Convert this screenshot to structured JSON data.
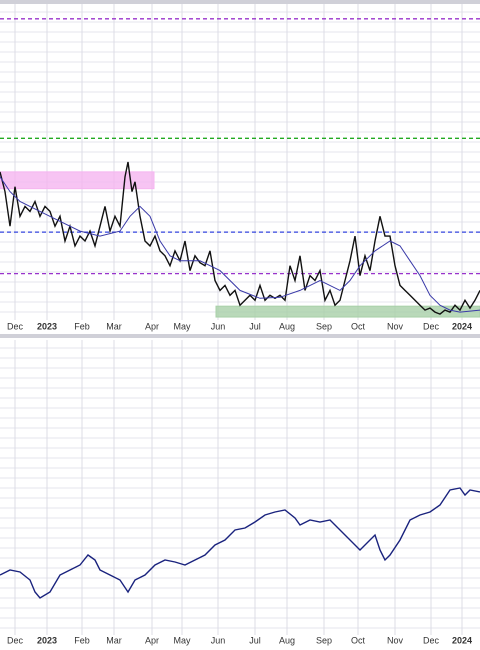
{
  "chart_data": [
    {
      "type": "line",
      "xlim": [
        0,
        480
      ],
      "ylim": [
        0,
        320
      ],
      "xticks": [
        {
          "value": 15,
          "label": "Dec"
        },
        {
          "value": 47,
          "label": "2023"
        },
        {
          "value": 82,
          "label": "Feb"
        },
        {
          "value": 114,
          "label": "Mar"
        },
        {
          "value": 152,
          "label": "Apr"
        },
        {
          "value": 182,
          "label": "May"
        },
        {
          "value": 218,
          "label": "Jun"
        },
        {
          "value": 255,
          "label": "Jul"
        },
        {
          "value": 287,
          "label": "Aug"
        },
        {
          "value": 324,
          "label": "Sep"
        },
        {
          "value": 358,
          "label": "Oct"
        },
        {
          "value": 395,
          "label": "Nov"
        },
        {
          "value": 431,
          "label": "Dec"
        },
        {
          "value": 462,
          "label": "2024"
        }
      ],
      "reference_lines": [
        {
          "value": 305,
          "color": "#9933cc"
        },
        {
          "value": 184,
          "color": "#22aa22"
        },
        {
          "value": 89,
          "color": "#3344dd"
        },
        {
          "value": 47,
          "color": "#9933cc"
        }
      ],
      "bands": [
        {
          "x": [
            0,
            154
          ],
          "y": [
            133,
            150
          ],
          "color": "#f5b5f0"
        },
        {
          "x": [
            216,
            480
          ],
          "y": [
            3,
            14
          ],
          "color": "#a8d0a8"
        }
      ],
      "x": [
        0,
        5,
        10,
        15,
        20,
        25,
        30,
        35,
        40,
        45,
        50,
        55,
        60,
        65,
        70,
        75,
        80,
        85,
        90,
        95,
        100,
        105,
        110,
        115,
        120,
        125,
        128,
        132,
        135,
        140,
        145,
        150,
        155,
        160,
        165,
        170,
        175,
        180,
        185,
        190,
        195,
        200,
        205,
        210,
        215,
        220,
        225,
        230,
        235,
        240,
        245,
        250,
        255,
        260,
        265,
        270,
        275,
        280,
        285,
        290,
        295,
        300,
        305,
        310,
        315,
        320,
        325,
        330,
        335,
        340,
        345,
        350,
        355,
        360,
        365,
        370,
        375,
        380,
        385,
        390,
        395,
        400,
        405,
        410,
        415,
        420,
        425,
        430,
        435,
        440,
        445,
        450,
        455,
        460,
        465,
        470,
        475,
        480
      ],
      "series": [
        {
          "color": "#111111",
          "values": [
            150,
            130,
            95,
            135,
            105,
            115,
            110,
            120,
            105,
            115,
            110,
            95,
            105,
            80,
            95,
            75,
            85,
            80,
            90,
            75,
            95,
            115,
            90,
            105,
            95,
            145,
            160,
            130,
            140,
            105,
            80,
            75,
            85,
            70,
            65,
            55,
            70,
            60,
            80,
            50,
            65,
            58,
            55,
            70,
            40,
            30,
            35,
            25,
            30,
            15,
            20,
            25,
            20,
            35,
            20,
            25,
            22,
            25,
            20,
            55,
            40,
            65,
            30,
            45,
            40,
            50,
            20,
            30,
            15,
            20,
            40,
            60,
            85,
            45,
            65,
            50,
            80,
            105,
            85,
            85,
            55,
            35,
            30,
            25,
            20,
            15,
            10,
            12,
            8,
            6,
            10,
            8,
            15,
            10,
            20,
            12,
            20,
            30
          ]
        },
        {
          "color": "#3a3aa8",
          "x": [
            0,
            10,
            20,
            40,
            60,
            80,
            100,
            120,
            130,
            140,
            150,
            160,
            170,
            180,
            200,
            220,
            240,
            260,
            280,
            300,
            320,
            340,
            350,
            360,
            375,
            390,
            400,
            410,
            420,
            430,
            440,
            450,
            460,
            480
          ],
          "values": [
            145,
            130,
            120,
            110,
            100,
            90,
            85,
            90,
            105,
            115,
            105,
            80,
            65,
            60,
            60,
            50,
            30,
            22,
            23,
            30,
            40,
            30,
            40,
            55,
            70,
            80,
            75,
            60,
            45,
            25,
            15,
            10,
            8,
            10
          ]
        }
      ]
    },
    {
      "type": "line",
      "xlim": [
        0,
        480
      ],
      "ylim": [
        0,
        295
      ],
      "xticks": [
        {
          "value": 15,
          "label": "Dec"
        },
        {
          "value": 47,
          "label": "2023"
        },
        {
          "value": 82,
          "label": "Feb"
        },
        {
          "value": 114,
          "label": "Mar"
        },
        {
          "value": 152,
          "label": "Apr"
        },
        {
          "value": 182,
          "label": "May"
        },
        {
          "value": 218,
          "label": "Jun"
        },
        {
          "value": 255,
          "label": "Jul"
        },
        {
          "value": 287,
          "label": "Aug"
        },
        {
          "value": 324,
          "label": "Sep"
        },
        {
          "value": 358,
          "label": "Oct"
        },
        {
          "value": 395,
          "label": "Nov"
        },
        {
          "value": 431,
          "label": "Dec"
        },
        {
          "value": 462,
          "label": "2024"
        }
      ],
      "x": [
        0,
        10,
        20,
        30,
        35,
        40,
        50,
        60,
        70,
        80,
        88,
        95,
        100,
        110,
        120,
        128,
        135,
        145,
        155,
        165,
        175,
        185,
        195,
        205,
        215,
        225,
        235,
        245,
        255,
        265,
        275,
        285,
        295,
        300,
        310,
        320,
        330,
        340,
        350,
        355,
        360,
        370,
        375,
        380,
        385,
        390,
        400,
        410,
        420,
        430,
        440,
        450,
        460,
        465,
        470,
        480
      ],
      "series": [
        {
          "color": "#1a237e",
          "values": [
            60,
            65,
            63,
            55,
            43,
            37,
            43,
            60,
            65,
            70,
            80,
            75,
            65,
            60,
            55,
            43,
            55,
            60,
            70,
            75,
            73,
            70,
            75,
            80,
            90,
            95,
            105,
            107,
            113,
            120,
            123,
            125,
            117,
            110,
            115,
            113,
            115,
            105,
            95,
            90,
            85,
            95,
            100,
            85,
            75,
            80,
            95,
            115,
            120,
            123,
            130,
            145,
            147,
            140,
            145,
            143
          ]
        }
      ]
    }
  ]
}
